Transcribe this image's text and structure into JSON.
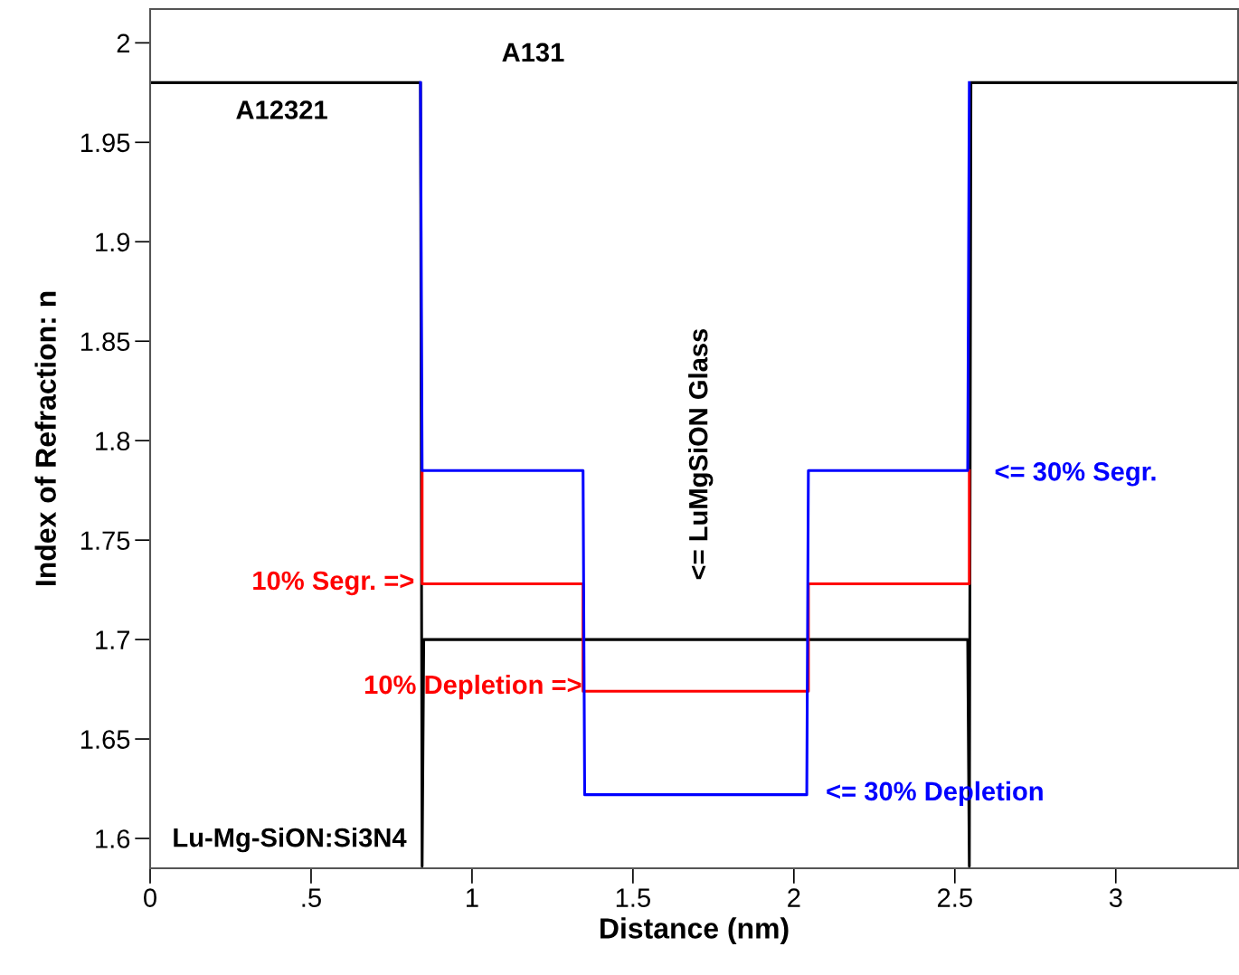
{
  "chart_data": {
    "type": "line",
    "xlabel": "Distance (nm)",
    "ylabel": "Index of Refraction: n",
    "series": [
      {
        "color": "#000000",
        "x": [
          0,
          0.84,
          0.845,
          0.85,
          2.54,
          2.545,
          2.55,
          3.38
        ],
        "values": [
          1.98,
          1.98,
          1.586,
          1.7,
          1.7,
          1.586,
          1.98,
          1.98
        ]
      },
      {
        "color": "#ff0000",
        "x": [
          0.845,
          0.845,
          1.345,
          1.345,
          2.045,
          2.045,
          2.545,
          2.545
        ],
        "values": [
          1.785,
          1.728,
          1.728,
          1.674,
          1.674,
          1.728,
          1.728,
          1.785
        ]
      },
      {
        "color": "#0000ff",
        "x": [
          0.84,
          0.845,
          1.345,
          1.35,
          2.04,
          2.045,
          2.54,
          2.545
        ],
        "values": [
          1.98,
          1.785,
          1.785,
          1.622,
          1.622,
          1.785,
          1.785,
          1.98
        ]
      }
    ],
    "annotations": [
      "A131",
      "A12321",
      "Lu-Mg-SiON:Si3N4",
      "<= LuMgSiON Glass",
      "10% Segr. =>",
      "10% Depletion =>",
      "<= 30% Segr.",
      "<= 30% Depletion"
    ],
    "xlim": [
      0,
      3.38
    ],
    "ylim": [
      1.585,
      2.017
    ],
    "xticks": [
      0,
      {
        "value": 0.5,
        "label": ".5"
      },
      1,
      1.5,
      2,
      2.5,
      3
    ],
    "yticks": [
      1.6,
      1.65,
      1.7,
      1.75,
      1.8,
      1.85,
      1.9,
      1.95,
      2
    ],
    "grid": false,
    "legend": false,
    "marker": "none",
    "line_style": "solid"
  }
}
